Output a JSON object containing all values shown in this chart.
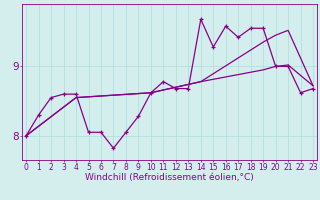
{
  "background_color": "#d4eeee",
  "plot_color": "#880088",
  "xlabel": "Windchill (Refroidissement éolien,°C)",
  "xlabel_fontsize": 6.5,
  "x_ticks": [
    0,
    1,
    2,
    3,
    4,
    5,
    6,
    7,
    8,
    9,
    10,
    11,
    12,
    13,
    14,
    15,
    16,
    17,
    18,
    19,
    20,
    21,
    22,
    23
  ],
  "xlim": [
    -0.3,
    23.3
  ],
  "ylim": [
    7.65,
    9.9
  ],
  "yticks": [
    8,
    9
  ],
  "line_smooth1_x": [
    0,
    4,
    10,
    14,
    19,
    20,
    21,
    23
  ],
  "line_smooth1_y": [
    8.0,
    8.55,
    8.62,
    8.78,
    9.35,
    9.45,
    9.52,
    8.72
  ],
  "line_smooth2_x": [
    0,
    4,
    10,
    14,
    19,
    20,
    21,
    23
  ],
  "line_smooth2_y": [
    8.0,
    8.55,
    8.62,
    8.78,
    8.95,
    9.0,
    9.02,
    8.72
  ],
  "line_jagged_x": [
    0,
    1,
    2,
    3,
    4,
    5,
    6,
    7,
    8,
    9,
    10,
    11,
    12,
    13,
    14,
    15,
    16,
    17,
    18,
    19,
    20,
    21,
    22,
    23
  ],
  "line_jagged_y": [
    8.0,
    8.3,
    8.55,
    8.6,
    8.6,
    8.05,
    8.05,
    7.82,
    8.05,
    8.28,
    8.62,
    8.78,
    8.68,
    8.68,
    9.68,
    9.28,
    9.58,
    9.42,
    9.55,
    9.55,
    9.0,
    9.0,
    8.62,
    8.68
  ],
  "tick_fontsize": 5.5,
  "grid_color": "#aadddd",
  "line_width": 0.9,
  "marker_size": 3.5
}
